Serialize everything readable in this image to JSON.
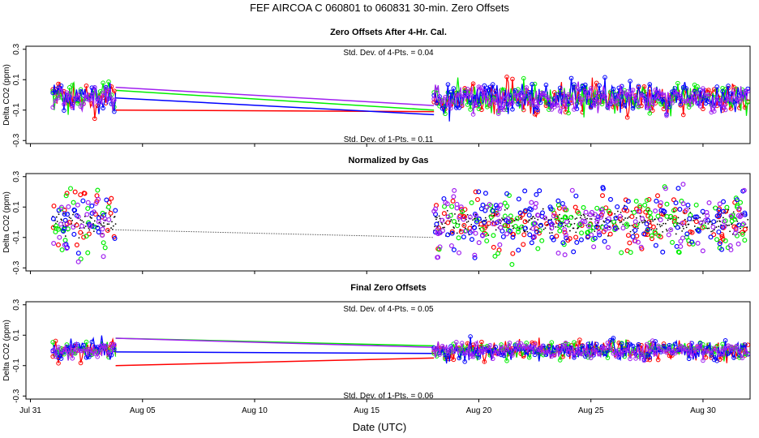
{
  "figure_title": "FEF   AIRCOA C   060801 to 060831   30-min. Zero Offsets",
  "x_axis_label": "Date (UTC)",
  "colors": {
    "red": "#ff0000",
    "green": "#00ee00",
    "blue": "#0000ff",
    "purple": "#a020f0",
    "black": "#000000"
  },
  "chart_data": [
    {
      "type": "line",
      "title": "Zero Offsets After 4-Hr. Cal.",
      "xlabel": "",
      "ylabel": "Delta CO2 (ppm)",
      "x_range_days": [
        -0.2,
        32.1
      ],
      "ylim": [
        -0.32,
        0.32
      ],
      "y_ticks": [
        -0.3,
        -0.1,
        0.1,
        0.3
      ],
      "y_tick_labels": [
        "-0.3",
        "-0.1",
        "0.1",
        "0.3"
      ],
      "annotations": [
        "Std. Dev. of 4-Pts. = 0.04",
        "Std. Dev. of 1-Pts. = 0.11"
      ],
      "data_gap": [
        3.8,
        18.0
      ],
      "gap_series": [
        {
          "name": "red",
          "values": [
            -0.1,
            -0.11
          ]
        },
        {
          "name": "green",
          "values": [
            0.03,
            -0.1
          ]
        },
        {
          "name": "blue",
          "values": [
            -0.02,
            -0.13
          ]
        },
        {
          "name": "purple",
          "values": [
            0.05,
            -0.07
          ]
        }
      ],
      "series_spread": {
        "red": 0.09,
        "green": 0.09,
        "blue": 0.1,
        "purple": 0.08
      },
      "center": -0.02
    },
    {
      "type": "scatter",
      "title": "Normalized by Gas",
      "xlabel": "",
      "ylabel": "Delta CO2 (ppm)",
      "x_range_days": [
        -0.2,
        32.1
      ],
      "ylim": [
        -0.32,
        0.32
      ],
      "y_ticks": [
        -0.3,
        -0.1,
        0.1,
        0.3
      ],
      "y_tick_labels": [
        "-0.3",
        "-0.1",
        "0.1",
        "0.3"
      ],
      "annotations": [],
      "data_gap": [
        3.8,
        18.0
      ],
      "gap_series": [
        {
          "name": "black",
          "values": [
            -0.05,
            -0.1
          ]
        }
      ],
      "series_spread": {
        "red": 0.1,
        "green": 0.1,
        "blue": 0.1,
        "purple": 0.1
      },
      "center": 0.0
    },
    {
      "type": "line",
      "title": "Final Zero Offsets",
      "xlabel": "Date (UTC)",
      "ylabel": "Delta CO2 (ppm)",
      "x_range_days": [
        -0.2,
        32.1
      ],
      "ylim": [
        -0.32,
        0.32
      ],
      "y_ticks": [
        -0.3,
        -0.1,
        0.1,
        0.3
      ],
      "y_tick_labels": [
        "-0.3",
        "-0.1",
        "0.1",
        "0.3"
      ],
      "annotations": [
        "Std. Dev. of 4-Pts. = 0.05",
        "Std. Dev. of 1-Pts. = 0.06"
      ],
      "data_gap": [
        3.8,
        18.0
      ],
      "gap_series": [
        {
          "name": "red",
          "values": [
            -0.1,
            -0.05
          ]
        },
        {
          "name": "green",
          "values": [
            0.08,
            0.03
          ]
        },
        {
          "name": "blue",
          "values": [
            -0.01,
            -0.02
          ]
        },
        {
          "name": "purple",
          "values": [
            0.08,
            0.02
          ]
        }
      ],
      "series_spread": {
        "red": 0.06,
        "green": 0.05,
        "blue": 0.06,
        "purple": 0.05
      },
      "center": 0.0
    }
  ],
  "x_ticks": [
    {
      "day": 0,
      "label": "Jul 31"
    },
    {
      "day": 5,
      "label": "Aug 05"
    },
    {
      "day": 10,
      "label": "Aug 10"
    },
    {
      "day": 15,
      "label": "Aug 15"
    },
    {
      "day": 20,
      "label": "Aug 20"
    },
    {
      "day": 25,
      "label": "Aug 25"
    },
    {
      "day": 30,
      "label": "Aug 30"
    }
  ],
  "data_segments_days": [
    [
      1.0,
      3.8
    ],
    [
      18.0,
      32.0
    ]
  ]
}
